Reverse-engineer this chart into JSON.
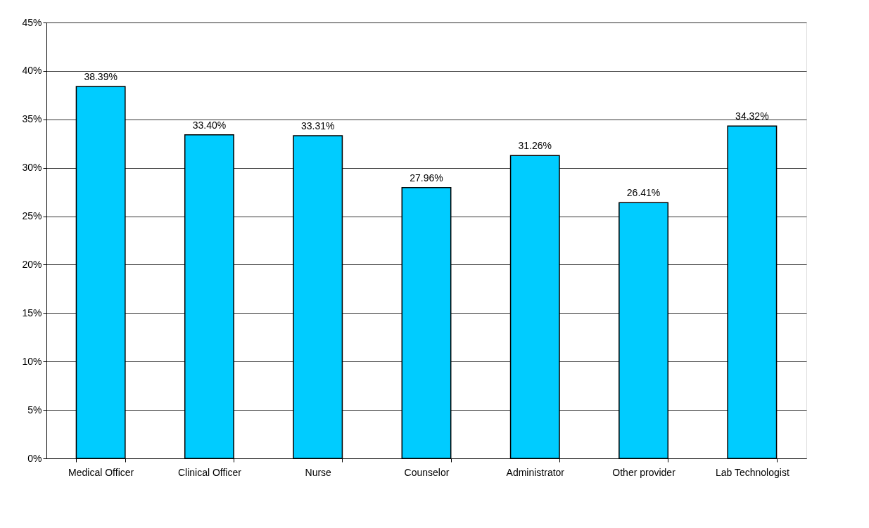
{
  "chart_data": {
    "type": "bar",
    "categories": [
      "Medical Officer",
      "Clinical Officer",
      "Nurse",
      "Counselor",
      "Administrator",
      "Other provider",
      "Lab Technologist"
    ],
    "values": [
      38.39,
      33.4,
      33.31,
      27.96,
      31.26,
      26.41,
      34.32
    ],
    "value_labels": [
      "38.39%",
      "33.40%",
      "33.31%",
      "27.96%",
      "31.26%",
      "26.41%",
      "34.32%"
    ],
    "color": "#00ccff",
    "ylim": [
      0,
      45
    ],
    "yticks": [
      {
        "value": 0,
        "label": "0%"
      },
      {
        "value": 5,
        "label": "5%"
      },
      {
        "value": 10,
        "label": "10%"
      },
      {
        "value": 15,
        "label": "15%"
      },
      {
        "value": 20,
        "label": "20%"
      },
      {
        "value": 25,
        "label": "25%"
      },
      {
        "value": 30,
        "label": "30%"
      },
      {
        "value": 35,
        "label": "35%"
      },
      {
        "value": 40,
        "label": "40%"
      },
      {
        "value": 45,
        "label": "45%"
      }
    ],
    "grid": "y"
  }
}
